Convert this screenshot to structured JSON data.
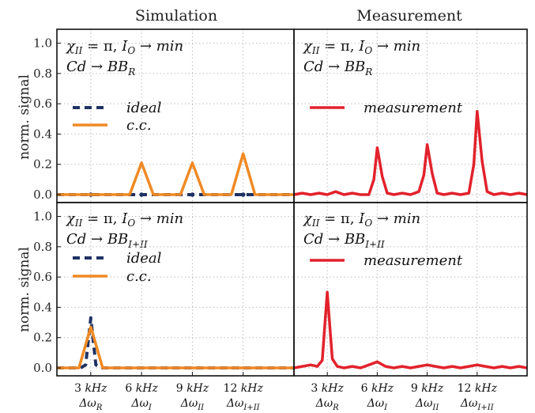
{
  "chart_data": [
    {
      "type": "line",
      "column_title": "Simulation",
      "ylabel": "norm. signal",
      "ylim": [
        0,
        1.05
      ],
      "yticks": [
        "0.0",
        "0.2",
        "0.4",
        "0.6",
        "0.8",
        "1.0"
      ],
      "xlim": [
        1,
        15
      ],
      "grid": true,
      "annotation_lines": [
        "χ_II = π, I_O → min",
        "Cd → BB_R"
      ],
      "legend": [
        "ideal",
        "c.c."
      ],
      "series": [
        {
          "name": "ideal",
          "style": "dashed",
          "color": "#1f3263",
          "markers": [
            3,
            6,
            9,
            12
          ],
          "x": [
            1,
            15
          ],
          "y": [
            0,
            0
          ]
        },
        {
          "name": "c.c.",
          "style": "solid",
          "color": "#f08a24",
          "x": [
            1,
            5.3,
            6,
            6.7,
            8.3,
            9,
            9.7,
            11.3,
            12,
            12.7,
            15
          ],
          "y": [
            0,
            0,
            0.21,
            0,
            0,
            0.21,
            0,
            0,
            0.27,
            0,
            0
          ]
        }
      ]
    },
    {
      "type": "line",
      "column_title": "Measurement",
      "ylim": [
        0,
        1.05
      ],
      "xlim": [
        1,
        15
      ],
      "grid": true,
      "annotation_lines": [
        "χ_II = π, I_O → min",
        "Cd → BB_R"
      ],
      "legend": [
        "measurement"
      ],
      "series": [
        {
          "name": "measurement",
          "style": "solid",
          "color": "#e2222c",
          "x": [
            1,
            1.5,
            2,
            2.5,
            3,
            3.5,
            4,
            4.5,
            5,
            5.5,
            5.8,
            6,
            6.3,
            6.6,
            7,
            7.5,
            8,
            8.5,
            8.8,
            9,
            9.3,
            9.6,
            10,
            10.5,
            11,
            11.5,
            11.8,
            12,
            12.3,
            12.6,
            13,
            13.5,
            14,
            14.5,
            15
          ],
          "y": [
            0.0,
            0.01,
            0.0,
            0.01,
            0.0,
            0.02,
            0.0,
            0.01,
            0.0,
            0.0,
            0.1,
            0.31,
            0.12,
            0.01,
            0.0,
            0.01,
            0.0,
            0.02,
            0.13,
            0.33,
            0.14,
            0.01,
            0.0,
            0.01,
            0.0,
            0.01,
            0.2,
            0.55,
            0.22,
            0.02,
            0.0,
            0.01,
            0.0,
            0.01,
            0.0
          ]
        }
      ]
    },
    {
      "type": "line",
      "ylabel": "norm. signal",
      "ylim": [
        0,
        1.05
      ],
      "yticks": [
        "0.0",
        "0.2",
        "0.4",
        "0.6",
        "0.8",
        "1.0"
      ],
      "xlim": [
        1,
        15
      ],
      "grid": true,
      "annotation_lines": [
        "χ_II = π, I_O → min",
        "Cd → BB_I+II"
      ],
      "legend": [
        "ideal",
        "c.c."
      ],
      "xticks": [
        {
          "x": 3,
          "top": "3 kHz",
          "bottom": "Δω_R"
        },
        {
          "x": 6,
          "top": "6 kHz",
          "bottom": "Δω_I"
        },
        {
          "x": 9,
          "top": "9 kHz",
          "bottom": "Δω_II"
        },
        {
          "x": 12,
          "top": "12 kHz",
          "bottom": "Δω_I+II"
        }
      ],
      "series": [
        {
          "name": "ideal",
          "style": "dashed",
          "color": "#1f3263",
          "x": [
            1,
            2.4,
            2.7,
            3,
            3.3,
            3.6,
            4.2,
            15
          ],
          "y": [
            0,
            0,
            0.02,
            0.33,
            0.02,
            0,
            0,
            0
          ]
        },
        {
          "name": "c.c.",
          "style": "solid",
          "color": "#f08a24",
          "x": [
            1,
            2.3,
            3,
            3.7,
            15
          ],
          "y": [
            0,
            0,
            0.27,
            0,
            0
          ]
        }
      ]
    },
    {
      "type": "line",
      "ylim": [
        0,
        1.05
      ],
      "xlim": [
        1,
        15
      ],
      "grid": true,
      "annotation_lines": [
        "χ_II = π, I_O → min",
        "Cd → BB_I+II"
      ],
      "legend": [
        "measurement"
      ],
      "xticks": [
        {
          "x": 3,
          "top": "3 kHz",
          "bottom": "Δω_R"
        },
        {
          "x": 6,
          "top": "6 kHz",
          "bottom": "Δω_I"
        },
        {
          "x": 9,
          "top": "9 kHz",
          "bottom": "Δω_II"
        },
        {
          "x": 12,
          "top": "12 kHz",
          "bottom": "Δω_I+II"
        }
      ],
      "series": [
        {
          "name": "measurement",
          "style": "solid",
          "color": "#e2222c",
          "x": [
            1,
            1.5,
            2,
            2.4,
            2.7,
            3,
            3.3,
            3.6,
            4,
            4.5,
            5,
            5.5,
            6,
            6.5,
            7,
            7.5,
            8,
            8.5,
            9,
            9.5,
            10,
            10.5,
            11,
            11.5,
            12,
            12.5,
            13,
            13.5,
            14,
            14.5,
            15
          ],
          "y": [
            0.0,
            0.01,
            0.02,
            0.01,
            0.05,
            0.5,
            0.06,
            0.01,
            0.0,
            0.01,
            0.0,
            0.02,
            0.04,
            0.01,
            0.0,
            0.01,
            0.0,
            0.01,
            0.02,
            0.01,
            0.0,
            0.01,
            0.0,
            0.01,
            0.02,
            0.01,
            0.0,
            0.01,
            0.0,
            0.01,
            0.0
          ]
        }
      ]
    }
  ]
}
